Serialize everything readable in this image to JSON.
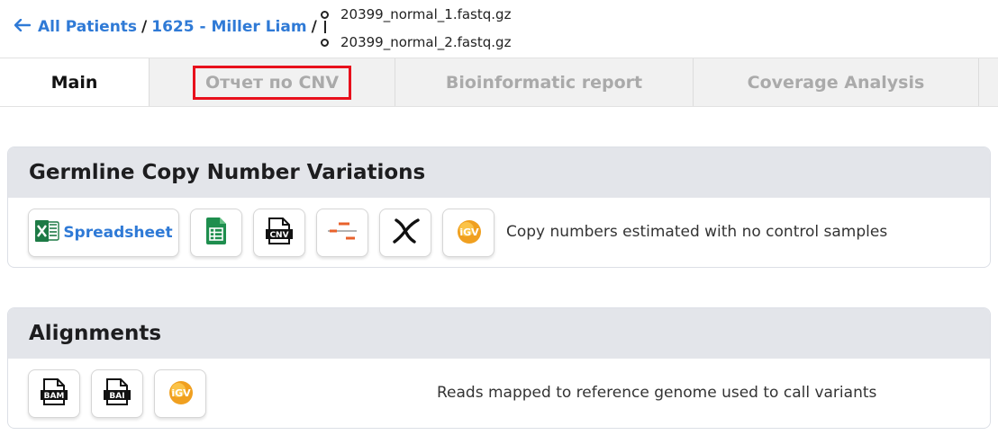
{
  "breadcrumb": {
    "back_icon": "arrow-left-icon",
    "all_patients": "All Patients",
    "separator": "/",
    "patient": "1625 - Miller Liam",
    "files": [
      "20399_normal_1.fastq.gz",
      "20399_normal_2.fastq.gz"
    ]
  },
  "tabs": [
    {
      "label": "Main",
      "active": true
    },
    {
      "label": "Отчет по CNV",
      "highlighted": true
    },
    {
      "label": "Bioinformatic report"
    },
    {
      "label": "Coverage Analysis"
    },
    {
      "label": ""
    }
  ],
  "cnv_section": {
    "title": "Germline Copy Number Variations",
    "spreadsheet_label": "Spreadsheet",
    "buttons": [
      "excel-icon",
      "sheets-icon",
      "cnv-file-icon",
      "segments-icon",
      "chromosome-icon",
      "igv-icon"
    ],
    "igv_text": "iGV",
    "cnv_text": "CNV",
    "description": "Copy numbers estimated with no control samples"
  },
  "alignments_section": {
    "title": "Alignments",
    "buttons": [
      "bam-file-icon",
      "bai-file-icon",
      "igv-icon"
    ],
    "bam_text": "BAM",
    "bai_text": "BAI",
    "igv_text": "iGV",
    "description": "Reads mapped to reference genome used to call variants"
  },
  "colors": {
    "link": "#2f7ad6",
    "highlight_box": "#e8101c",
    "excel_green": "#1d7a45",
    "segment_orange": "#e8622c",
    "igv_orange": "#f0a020"
  }
}
